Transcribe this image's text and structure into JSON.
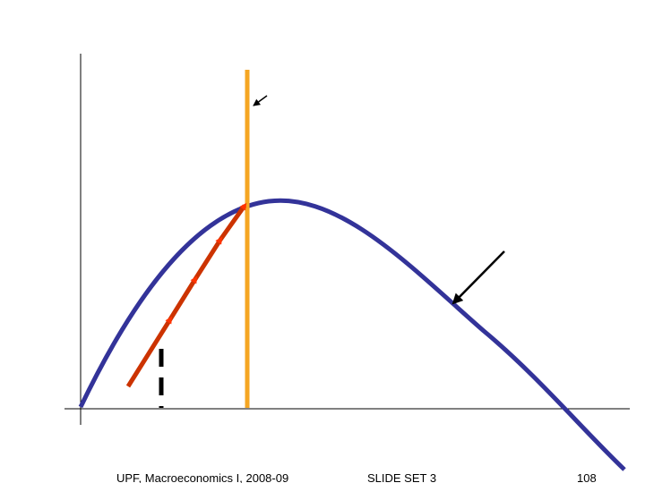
{
  "footer": {
    "source": "UPF, Macroeconomics I, 2008-09",
    "slide_set": "SLIDE SET 3",
    "page": "108"
  }
}
